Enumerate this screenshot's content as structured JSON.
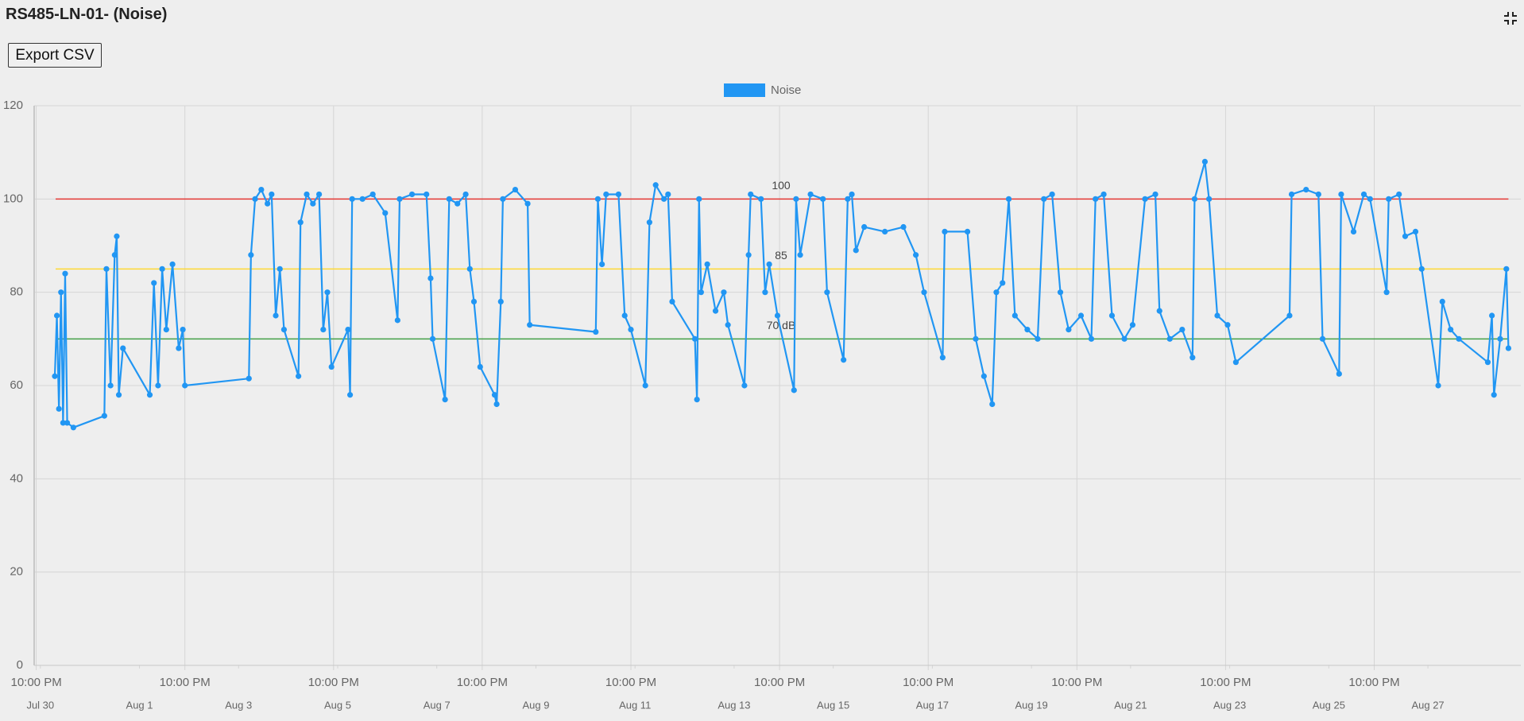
{
  "header": {
    "title": "RS485-LN-01- (Noise)",
    "export_button": "Export CSV"
  },
  "chart_data": {
    "type": "line",
    "x": [
      "07-30 07:00",
      "07-30 08:00",
      "07-30 09:00",
      "07-30 10:00",
      "07-30 11:00",
      "07-30 12:00",
      "07-30 13:00",
      "07-30 16:00",
      "07-31 07:00",
      "07-31 08:00",
      "07-31 10:00",
      "07-31 12:00",
      "07-31 13:00",
      "07-31 14:00",
      "07-31 16:00",
      "08-01 05:00",
      "08-01 07:00",
      "08-01 09:00",
      "08-01 11:00",
      "08-01 13:00",
      "08-01 16:00",
      "08-01 19:00",
      "08-01 21:00",
      "08-01 22:00",
      "08-03 05:00",
      "08-03 06:00",
      "08-03 08:00",
      "08-03 11:00",
      "08-03 14:00",
      "08-03 16:00",
      "08-03 18:00",
      "08-03 20:00",
      "08-03 22:00",
      "08-04 05:00",
      "08-04 06:00",
      "08-04 09:00",
      "08-04 12:00",
      "08-04 15:00",
      "08-04 17:00",
      "08-04 19:00",
      "08-04 21:00",
      "08-05 05:00",
      "08-05 06:00",
      "08-05 07:00",
      "08-05 12:00",
      "08-05 17:00",
      "08-05 23:00",
      "08-06 05:00",
      "08-06 06:00",
      "08-06 12:00",
      "08-06 19:00",
      "08-06 21:00",
      "08-06 22:00",
      "08-07 04:00",
      "08-07 06:00",
      "08-07 10:00",
      "08-07 14:00",
      "08-07 16:00",
      "08-07 18:00",
      "08-07 21:00",
      "08-08 04:00",
      "08-08 05:00",
      "08-08 07:00",
      "08-08 08:00",
      "08-08 14:00",
      "08-08 20:00",
      "08-08 21:00",
      "08-10 05:00",
      "08-10 06:00",
      "08-10 08:00",
      "08-10 10:00",
      "08-10 16:00",
      "08-10 19:00",
      "08-10 22:00",
      "08-11 05:00",
      "08-11 07:00",
      "08-11 10:00",
      "08-11 14:00",
      "08-11 16:00",
      "08-11 18:00",
      "08-12 05:00",
      "08-12 06:00",
      "08-12 07:00",
      "08-12 08:00",
      "08-12 11:00",
      "08-12 15:00",
      "08-12 19:00",
      "08-12 21:00",
      "08-13 05:00",
      "08-13 07:00",
      "08-13 08:00",
      "08-13 13:00",
      "08-13 15:00",
      "08-13 17:00",
      "08-13 21:00",
      "08-14 05:00",
      "08-14 06:00",
      "08-14 08:00",
      "08-14 13:00",
      "08-14 19:00",
      "08-14 21:00",
      "08-15 05:00",
      "08-15 07:00",
      "08-15 09:00",
      "08-15 11:00",
      "08-15 15:00",
      "08-16 01:00",
      "08-16 10:00",
      "08-16 16:00",
      "08-16 20:00",
      "08-17 05:00",
      "08-17 06:00",
      "08-17 17:00",
      "08-17 21:00",
      "08-18 01:00",
      "08-18 05:00",
      "08-18 07:00",
      "08-18 10:00",
      "08-18 13:00",
      "08-18 16:00",
      "08-18 22:00",
      "08-19 03:00",
      "08-19 06:00",
      "08-19 10:00",
      "08-19 14:00",
      "08-19 18:00",
      "08-20 00:00",
      "08-20 05:00",
      "08-20 07:00",
      "08-20 11:00",
      "08-20 15:00",
      "08-20 21:00",
      "08-21 01:00",
      "08-21 07:00",
      "08-21 12:00",
      "08-21 14:00",
      "08-21 19:00",
      "08-22 01:00",
      "08-22 06:00",
      "08-22 07:00",
      "08-22 12:00",
      "08-22 14:00",
      "08-22 18:00",
      "08-22 23:00",
      "08-23 03:00",
      "08-24 05:00",
      "08-24 06:00",
      "08-24 13:00",
      "08-24 19:00",
      "08-24 21:00",
      "08-25 05:00",
      "08-25 06:00",
      "08-25 12:00",
      "08-25 17:00",
      "08-25 20:00",
      "08-26 04:00",
      "08-26 05:00",
      "08-26 10:00",
      "08-26 13:00",
      "08-26 18:00",
      "08-26 21:00",
      "08-27 05:00",
      "08-27 07:00",
      "08-27 11:00",
      "08-27 15:00",
      "08-28 05:00",
      "08-28 07:00",
      "08-28 08:00",
      "08-28 11:00",
      "08-28 14:00",
      "08-28 15:00"
    ],
    "series": [
      {
        "name": "Noise",
        "color": "#2196f3",
        "values": [
          62,
          75,
          55,
          80,
          52,
          84,
          52,
          51,
          53.5,
          85,
          60,
          88,
          92,
          58,
          68,
          58,
          82,
          60,
          85,
          72,
          86,
          68,
          72,
          60,
          61.5,
          88,
          100,
          102,
          99,
          101,
          75,
          85,
          72,
          62,
          95,
          101,
          99,
          101,
          72,
          80,
          64,
          72,
          58,
          100,
          100,
          101,
          97,
          74,
          100,
          101,
          101,
          83,
          70,
          57,
          100,
          99,
          101,
          85,
          78,
          64,
          58,
          56,
          78,
          100,
          102,
          99,
          73,
          71.5,
          100,
          86,
          101,
          101,
          75,
          72,
          60,
          95,
          103,
          100,
          101,
          78,
          70,
          57,
          100,
          80,
          86,
          76,
          80,
          73,
          60,
          88,
          101,
          100,
          80,
          86,
          75,
          59,
          100,
          88,
          101,
          100,
          80,
          65.5,
          100,
          101,
          89,
          94,
          93,
          94,
          88,
          80,
          66,
          93,
          93,
          70,
          62,
          56,
          80,
          82,
          100,
          75,
          72,
          70,
          100,
          101,
          80,
          72,
          75,
          70,
          100,
          101,
          75,
          70,
          73,
          100,
          101,
          76,
          70,
          72,
          66,
          100,
          108,
          100,
          75,
          73,
          65,
          75,
          101,
          102,
          101,
          70,
          62.5,
          101,
          93,
          101,
          100,
          80,
          100,
          101,
          92,
          93,
          85,
          60,
          78,
          72,
          70,
          65,
          75,
          58,
          70,
          85,
          68
        ]
      }
    ],
    "xlim": [
      "07-29 21:00",
      "08-28 21:00"
    ],
    "xticks": [
      {
        "value": "07-29 22:00",
        "label": "10:00 PM"
      },
      {
        "value": "08-01 22:00",
        "label": "10:00 PM"
      },
      {
        "value": "08-04 22:00",
        "label": "10:00 PM"
      },
      {
        "value": "08-07 22:00",
        "label": "10:00 PM"
      },
      {
        "value": "08-10 22:00",
        "label": "10:00 PM"
      },
      {
        "value": "08-13 22:00",
        "label": "10:00 PM"
      },
      {
        "value": "08-16 22:00",
        "label": "10:00 PM"
      },
      {
        "value": "08-19 22:00",
        "label": "10:00 PM"
      },
      {
        "value": "08-22 22:00",
        "label": "10:00 PM"
      },
      {
        "value": "08-25 22:00",
        "label": "10:00 PM"
      }
    ],
    "xticks_dates": [
      {
        "value": "07-30 00:00",
        "label": "Jul 30"
      },
      {
        "value": "08-01 00:00",
        "label": "Aug 1"
      },
      {
        "value": "08-03 00:00",
        "label": "Aug 3"
      },
      {
        "value": "08-05 00:00",
        "label": "Aug 5"
      },
      {
        "value": "08-07 00:00",
        "label": "Aug 7"
      },
      {
        "value": "08-09 00:00",
        "label": "Aug 9"
      },
      {
        "value": "08-11 00:00",
        "label": "Aug 11"
      },
      {
        "value": "08-13 00:00",
        "label": "Aug 13"
      },
      {
        "value": "08-15 00:00",
        "label": "Aug 15"
      },
      {
        "value": "08-17 00:00",
        "label": "Aug 17"
      },
      {
        "value": "08-19 00:00",
        "label": "Aug 19"
      },
      {
        "value": "08-21 00:00",
        "label": "Aug 21"
      },
      {
        "value": "08-23 00:00",
        "label": "Aug 23"
      },
      {
        "value": "08-25 00:00",
        "label": "Aug 25"
      },
      {
        "value": "08-27 00:00",
        "label": "Aug 27"
      }
    ],
    "ylim": [
      0,
      120
    ],
    "yticks": [
      0,
      20,
      40,
      60,
      80,
      100,
      120
    ],
    "grid": true,
    "legend": "top",
    "annotations": [
      {
        "value": 100,
        "label": "100",
        "color": "#e53935"
      },
      {
        "value": 85,
        "label": "85",
        "color": "#fdd835"
      },
      {
        "value": 70,
        "label": "70 dB",
        "color": "#43a047"
      }
    ]
  }
}
